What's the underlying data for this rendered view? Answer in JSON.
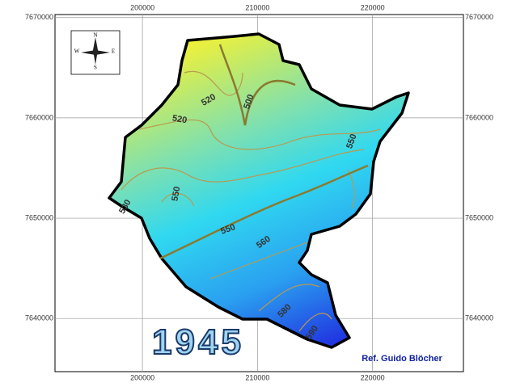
{
  "map": {
    "xticks": [
      200000,
      210000,
      220000
    ],
    "yticks": [
      7670000,
      7660000,
      7650000,
      7640000
    ],
    "xlim": [
      192400,
      227900
    ],
    "ylim": [
      7634700,
      7670300
    ],
    "compass": {
      "north": "N",
      "south": "S",
      "east": "E",
      "west": "W"
    },
    "contour_labels": [
      "520",
      "500",
      "520",
      "550",
      "530",
      "550",
      "550",
      "560",
      "580",
      "590"
    ],
    "year": "1945",
    "credit": "Ref. Guido Blöcher"
  }
}
